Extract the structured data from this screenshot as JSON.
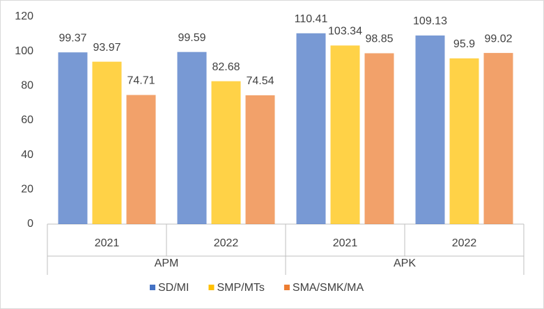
{
  "chart_data": {
    "type": "bar",
    "categories": [
      "2021",
      "2022",
      "2021",
      "2022"
    ],
    "groups": [
      "APM",
      "APK"
    ],
    "series": [
      {
        "name": "SD/MI",
        "color": "#4472c4",
        "values": [
          99.37,
          99.59,
          110.41,
          109.13
        ]
      },
      {
        "name": "SMP/MTs",
        "color": "#ffc000",
        "values": [
          93.97,
          82.68,
          103.34,
          95.9
        ]
      },
      {
        "name": "SMA/SMK/MA",
        "color": "#ed7d31",
        "values": [
          74.71,
          74.54,
          98.85,
          99.02
        ]
      }
    ],
    "ylim": [
      0,
      120
    ],
    "yticks": [
      0,
      20,
      40,
      60,
      80,
      100,
      120
    ],
    "grid": false,
    "legend": "bottom"
  }
}
